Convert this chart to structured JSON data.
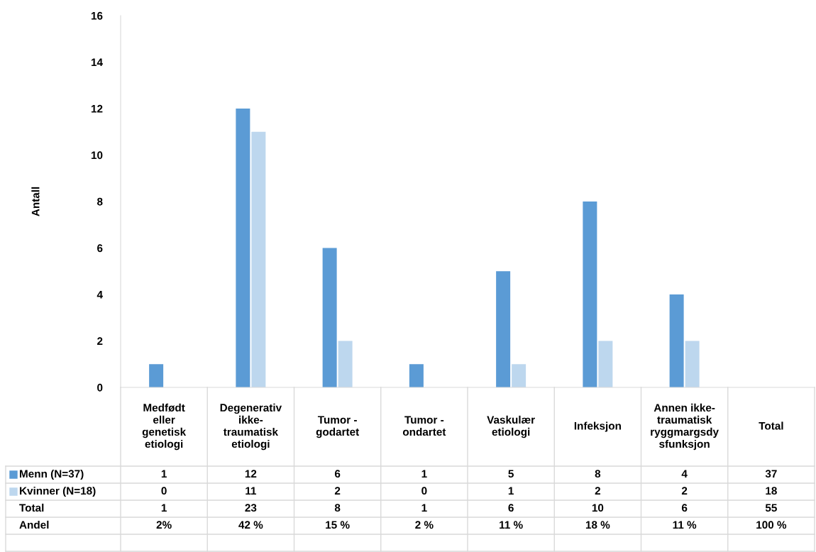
{
  "chart_data": {
    "type": "bar",
    "ylabel": "Antall",
    "categories": [
      "Medfødt\neller\ngenetisk\netiologi",
      "Degenerativ\nikke-\ntraumatisk\netiologi",
      "Tumor -\ngodartet",
      "Tumor -\nondartet",
      "Vaskulær\netiologi",
      "Infeksjon",
      "Annen ikke-\ntraumatisk\nryggmargsdy\nsfunksjon",
      "Total"
    ],
    "series": [
      {
        "name": "Menn (N=37)",
        "color": "#5b9bd5",
        "values": [
          1,
          12,
          6,
          1,
          5,
          8,
          4,
          null
        ],
        "value_labels": [
          "1",
          "12",
          "6",
          "1",
          "5",
          "8",
          "4",
          "37"
        ]
      },
      {
        "name": "Kvinner (N=18)",
        "color": "#bdd7ee",
        "values": [
          0,
          11,
          2,
          0,
          1,
          2,
          2,
          null
        ],
        "value_labels": [
          "0",
          "11",
          "2",
          "0",
          "1",
          "2",
          "2",
          "18"
        ]
      }
    ],
    "annotations": [
      "Total",
      "1",
      "23",
      "8",
      "1",
      "6",
      "10",
      "6",
      "55",
      "Andel",
      "2%",
      "42 %",
      "15 %",
      "2 %",
      "11 %",
      "18 %",
      "11 %",
      "100 %"
    ],
    "ylim": [
      0,
      16
    ],
    "yticks": [
      0,
      2,
      4,
      6,
      8,
      10,
      12,
      14,
      16
    ],
    "grid": false,
    "legend": "bottom left"
  }
}
